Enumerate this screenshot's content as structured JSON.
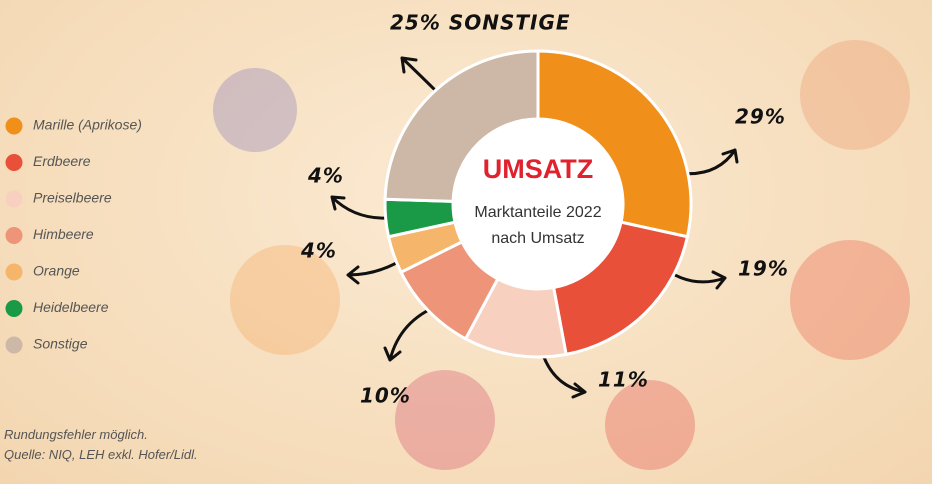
{
  "chart_data": {
    "type": "donut",
    "center_title": "UMSATZ",
    "center_subtitle": [
      "Marktanteile 2022",
      "nach Umsatz"
    ],
    "categories": [
      "Marille (Aprikose)",
      "Erdbeere",
      "Preiselbeere",
      "Himbeere",
      "Orange",
      "Heidelbeere",
      "Sonstige"
    ],
    "values": [
      29,
      19,
      11,
      10,
      4,
      4,
      25
    ],
    "value_labels": [
      "29%",
      "19%",
      "11%",
      "10%",
      "4%",
      "4%",
      "25% SONSTIGE"
    ],
    "colors": [
      "#f0901a",
      "#e8503a",
      "#f7d0c0",
      "#ee9478",
      "#f5b56a",
      "#1a9a46",
      "#cdb8a8"
    ],
    "legend": "left",
    "notes": [
      "Rundungsfehler möglich.",
      "Quelle: NIQ, LEH exkl. Hofer/Lidl."
    ]
  }
}
